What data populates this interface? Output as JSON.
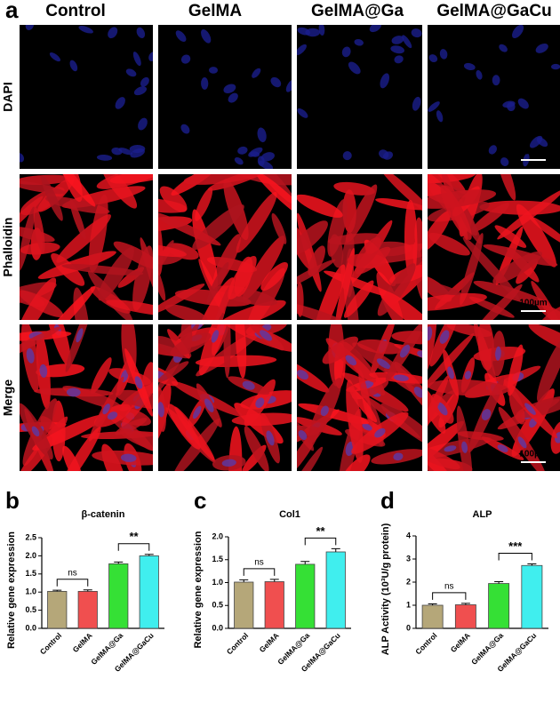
{
  "panel_a": {
    "label": "a",
    "columns": [
      "Control",
      "GelMA",
      "GelMA@Ga",
      "GelMA@GaCu"
    ],
    "rows": [
      "DAPI",
      "Phalloidin",
      "Merge"
    ],
    "scale_bar": "100µm"
  },
  "chart_data": [
    {
      "type": "bar",
      "panel_label": "b",
      "title": "β-catenin",
      "y_label": "Relative gene expression",
      "categories": [
        "Control",
        "GelMA",
        "GelMA@Ga",
        "GelMA@GaCu"
      ],
      "values": [
        1.02,
        1.02,
        1.78,
        2.0
      ],
      "errors": [
        0.03,
        0.04,
        0.05,
        0.04
      ],
      "colors": [
        "#b5a779",
        "#f04f4f",
        "#35e035",
        "#40eeee"
      ],
      "ylim": [
        0,
        2.5
      ],
      "yticks": [
        {
          "value": 0,
          "label": "0.0"
        },
        0.5,
        {
          "value": 1,
          "label": "1.0"
        },
        1.5,
        {
          "value": 2,
          "label": "2.0"
        },
        2.5
      ],
      "annotations": [
        "ns",
        "**"
      ]
    },
    {
      "type": "bar",
      "panel_label": "c",
      "title": "Col1",
      "y_label": "Relative gene expression",
      "categories": [
        "Control",
        "GelMA",
        "GelMA@Ga",
        "GelMA@GaCu"
      ],
      "values": [
        1.01,
        1.02,
        1.4,
        1.67
      ],
      "errors": [
        0.05,
        0.05,
        0.06,
        0.07
      ],
      "colors": [
        "#b5a779",
        "#f04f4f",
        "#35e035",
        "#40eeee"
      ],
      "ylim": [
        0,
        2
      ],
      "yticks": [
        {
          "value": 0,
          "label": "0.0"
        },
        0.5,
        {
          "value": 1,
          "label": "1.0"
        },
        1.5,
        {
          "value": 2,
          "label": "2.0"
        }
      ],
      "annotations": [
        "ns",
        "**"
      ]
    },
    {
      "type": "bar",
      "panel_label": "d",
      "title": "ALP",
      "y_label": "ALP Activity (10³U/g protein)",
      "categories": [
        "Control",
        "GelMA",
        "GelMA@Ga",
        "GelMA@GaCu"
      ],
      "values": [
        1.0,
        1.02,
        1.94,
        2.72
      ],
      "errors": [
        0.06,
        0.06,
        0.08,
        0.07
      ],
      "colors": [
        "#b5a779",
        "#f04f4f",
        "#35e035",
        "#40eeee"
      ],
      "ylim": [
        0,
        4
      ],
      "yticks": [
        0,
        1,
        2,
        3,
        4
      ],
      "annotations": [
        "ns",
        "***"
      ]
    }
  ]
}
